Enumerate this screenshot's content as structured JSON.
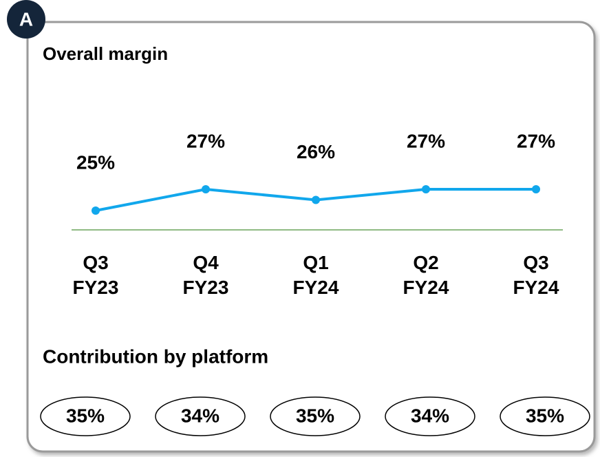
{
  "badge": "A",
  "chart_data": {
    "type": "line",
    "title": "Overall margin",
    "categories": [
      "Q3 FY23",
      "Q4 FY23",
      "Q1 FY24",
      "Q2 FY24",
      "Q3 FY24"
    ],
    "values": [
      25,
      27,
      26,
      27,
      27
    ],
    "value_labels": [
      "25%",
      "27%",
      "26%",
      "27%",
      "27%"
    ],
    "color": "#11a7ec"
  },
  "contribution": {
    "title": "Contribution by platform",
    "values": [
      35,
      34,
      35,
      34,
      35
    ],
    "value_labels": [
      "35%",
      "34%",
      "35%",
      "34%",
      "35%"
    ]
  }
}
